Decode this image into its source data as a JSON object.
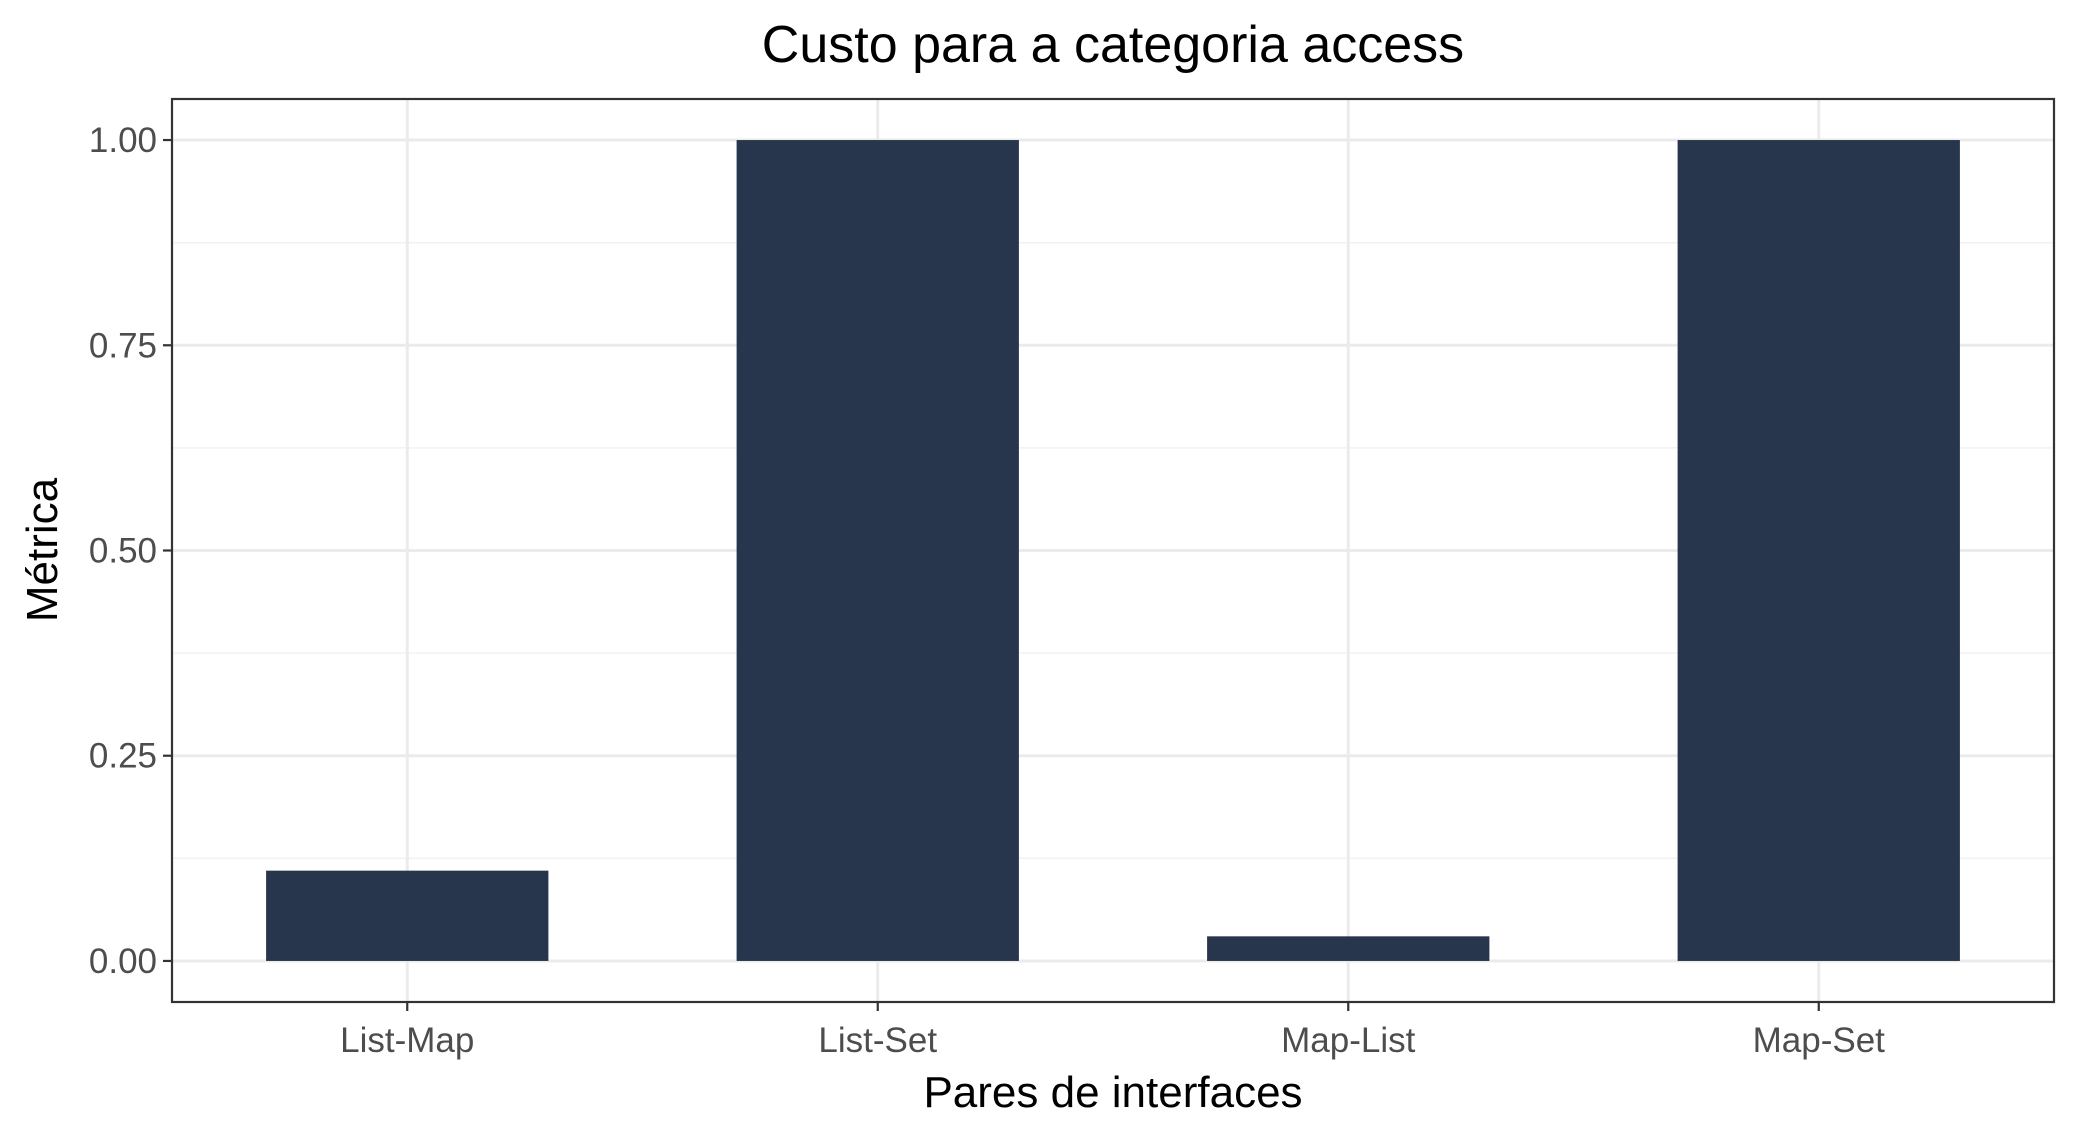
{
  "chart_data": {
    "type": "bar",
    "title": "Custo para a categoria access",
    "xlabel": "Pares de interfaces",
    "ylabel": "Métrica",
    "categories": [
      "List-Map",
      "List-Set",
      "Map-List",
      "Map-Set"
    ],
    "values": [
      0.11,
      1.0,
      0.03,
      1.0
    ],
    "ylim": [
      -0.05,
      1.05
    ],
    "yticks": [
      0.0,
      0.25,
      0.5,
      0.75,
      1.0
    ],
    "ytick_labels": [
      "0.00",
      "0.25",
      "0.50",
      "0.75",
      "1.00"
    ],
    "grid": true,
    "legend": "none",
    "bar_color": "#27364C"
  }
}
